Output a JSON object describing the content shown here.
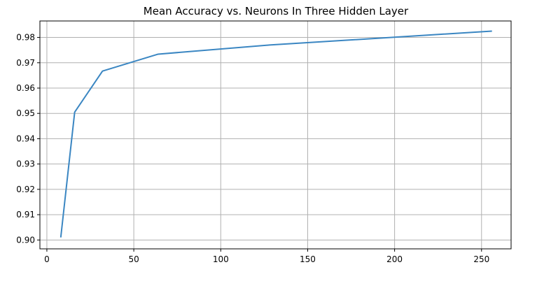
{
  "chart_data": {
    "type": "line",
    "title": "Mean Accuracy vs. Neurons In Three Hidden Layer",
    "xlabel": "",
    "ylabel": "",
    "xlim": [
      -4,
      267
    ],
    "ylim": [
      0.8965,
      0.9865
    ],
    "xticks": [
      0,
      50,
      100,
      150,
      200,
      250
    ],
    "xtick_labels": [
      "0",
      "50",
      "100",
      "150",
      "200",
      "250"
    ],
    "yticks": [
      0.9,
      0.91,
      0.92,
      0.93,
      0.94,
      0.95,
      0.96,
      0.97,
      0.98
    ],
    "ytick_labels": [
      "0.90",
      "0.91",
      "0.92",
      "0.93",
      "0.94",
      "0.95",
      "0.96",
      "0.97",
      "0.98"
    ],
    "grid": true,
    "series": [
      {
        "x": [
          8,
          16,
          32,
          64,
          128,
          256
        ],
        "y": [
          0.901,
          0.9505,
          0.9667,
          0.9734,
          0.977,
          0.9825
        ],
        "color": "#3a86c2"
      }
    ]
  }
}
